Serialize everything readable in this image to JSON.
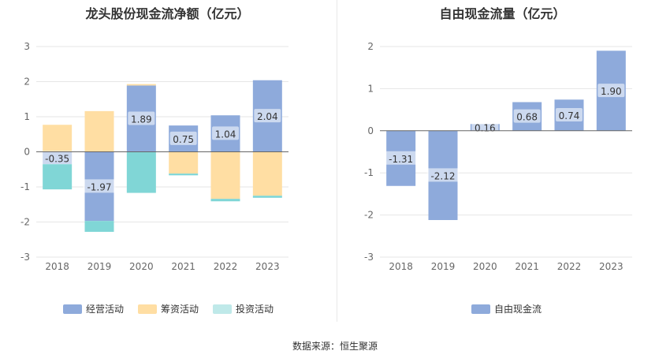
{
  "chart_data": [
    {
      "type": "bar",
      "stacked": true,
      "title": "龙头股份现金流净额（亿元）",
      "categories": [
        "2018",
        "2019",
        "2020",
        "2021",
        "2022",
        "2023"
      ],
      "ylim": [
        -3,
        3
      ],
      "yticks": [
        "3",
        "2",
        "1",
        "0",
        "-1",
        "-2",
        "-3"
      ],
      "series": [
        {
          "name": "经营活动",
          "color": "#8eaadb",
          "values": [
            -0.35,
            -1.97,
            1.89,
            0.75,
            1.04,
            2.04
          ],
          "labels": [
            "-0.35",
            "-1.97",
            "1.89",
            "0.75",
            "1.04",
            "2.04"
          ]
        },
        {
          "name": "筹资活动",
          "color": "#ffdea3",
          "values": [
            0.77,
            1.16,
            0.04,
            -0.62,
            -1.34,
            -1.25
          ]
        },
        {
          "name": "投资活动",
          "color": "#80d6d6",
          "values": [
            -0.72,
            -0.31,
            -1.17,
            -0.05,
            -0.07,
            -0.06
          ]
        }
      ],
      "legend_swatches": [
        "#8eaadb",
        "#ffdea3",
        "#bfe9e9"
      ]
    },
    {
      "type": "bar",
      "title": "自由现金流量（亿元）",
      "categories": [
        "2018",
        "2019",
        "2020",
        "2021",
        "2022",
        "2023"
      ],
      "ylim": [
        -3,
        2
      ],
      "yticks": [
        "2",
        "1",
        "0",
        "-1",
        "-2",
        "-3"
      ],
      "series": [
        {
          "name": "自由现金流",
          "color": "#8eaadb",
          "values": [
            -1.31,
            -2.12,
            0.16,
            0.68,
            0.74,
            1.9
          ],
          "labels": [
            "-1.31",
            "-2.12",
            "0.16",
            "0.68",
            "0.74",
            "1.90"
          ]
        }
      ]
    }
  ],
  "legend1": [
    {
      "name": "经营活动",
      "color": "#8eaadb"
    },
    {
      "name": "筹资活动",
      "color": "#ffdea3"
    },
    {
      "name": "投资活动",
      "color": "#bfe9e9"
    }
  ],
  "legend2": [
    {
      "name": "自由现金流",
      "color": "#8eaadb"
    }
  ],
  "source": "数据来源：恒生聚源"
}
